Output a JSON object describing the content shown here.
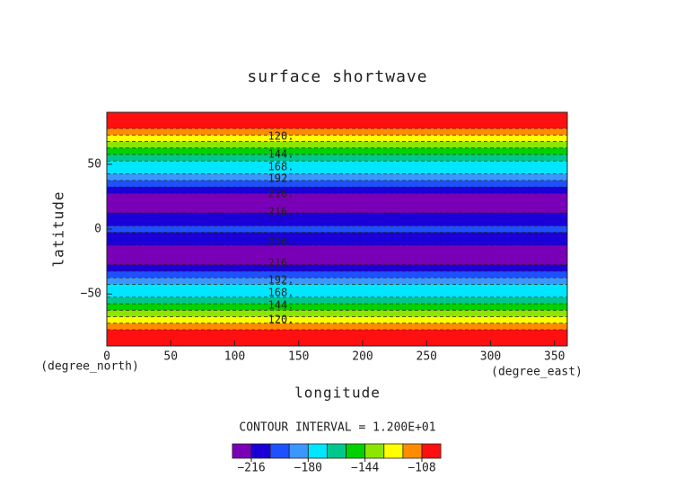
{
  "chart_data": {
    "type": "contour",
    "title": "surface shortwave",
    "x_label": "longitude",
    "y_label": "latitude",
    "x_units": "(degree_east)",
    "y_units": "(degree_north)",
    "note": "CONTOUR INTERVAL = 1.200E+01",
    "xlim": [
      0,
      360
    ],
    "ylim": [
      -90,
      90
    ],
    "xticks": [
      0,
      50,
      100,
      150,
      200,
      250,
      300,
      350
    ],
    "yticks": [
      {
        "value": -50,
        "label": "−50"
      },
      0,
      50
    ],
    "lat": [
      90,
      85,
      80,
      75,
      70,
      65,
      60,
      55,
      50,
      45,
      40,
      35,
      30,
      25,
      20,
      15,
      10,
      5,
      0,
      -5,
      -10,
      -15,
      -20,
      -25,
      -30,
      -35,
      -40,
      -45,
      -50,
      -55,
      -60,
      -65,
      -70,
      -75,
      -80,
      -85,
      -90
    ],
    "values": [
      -100,
      -102,
      -106,
      -114,
      -124,
      -136,
      -148,
      -160,
      -170,
      -180,
      -192,
      -200,
      -210,
      -220,
      -222,
      -220,
      -212,
      -205,
      -200,
      -205,
      -212,
      -220,
      -222,
      -220,
      -210,
      -200,
      -192,
      -180,
      -170,
      -160,
      -148,
      -136,
      -124,
      -114,
      -106,
      -102,
      -100
    ],
    "contour_labels": [
      "120.",
      "144.",
      "168.",
      "192.",
      "216.",
      "216.",
      "216.",
      "216.",
      "192.",
      "168.",
      "144.",
      "120."
    ],
    "levels": [
      -228,
      -216,
      -204,
      -192,
      -180,
      -168,
      -156,
      -144,
      -132,
      -120,
      -108,
      -96
    ],
    "colors": [
      "#7a00b8",
      "#1a00d6",
      "#1e50ff",
      "#3c96ff",
      "#00e6ff",
      "#00c88c",
      "#00d200",
      "#8ce600",
      "#ffff00",
      "#ff8c00",
      "#ff1010",
      "#ffa0a0"
    ],
    "colorbar_ticks": [
      {
        "value": -216,
        "label": "−216"
      },
      {
        "value": -180,
        "label": "−180"
      },
      {
        "value": -144,
        "label": "−144"
      },
      {
        "value": -108,
        "label": "−108"
      }
    ]
  }
}
